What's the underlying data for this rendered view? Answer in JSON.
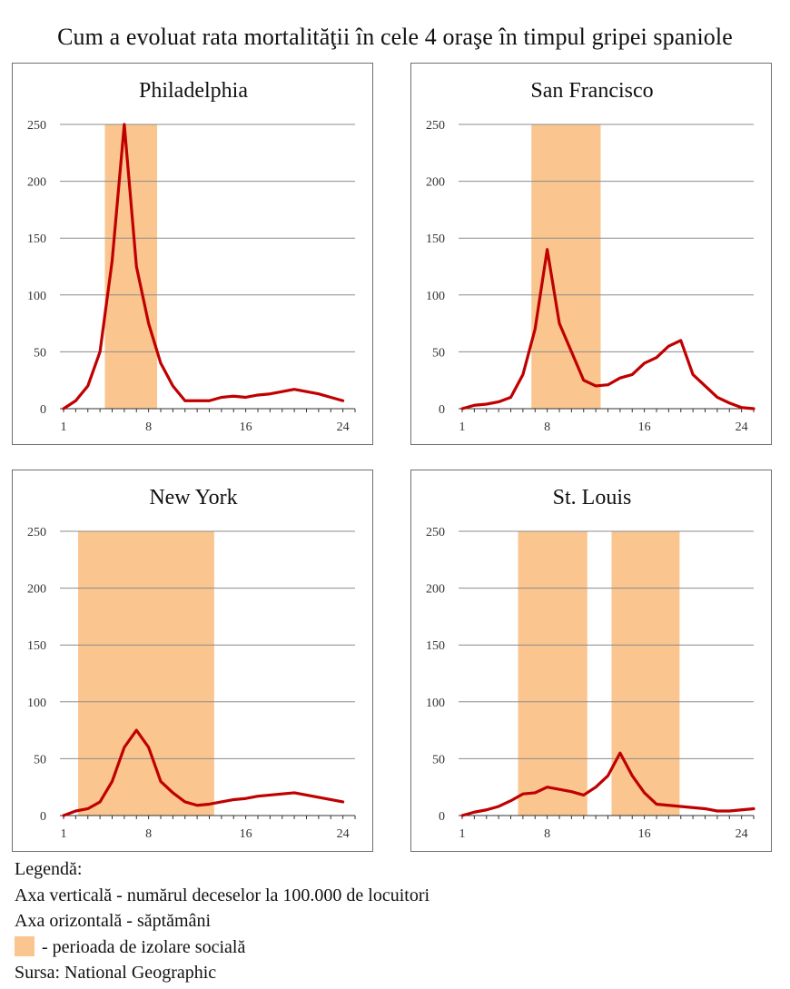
{
  "chart_data": {
    "title": "Cum a evoluat rata mortalităţii în cele 4 oraşe în timpul gripei spaniole",
    "y_ticks": [
      "250",
      "200",
      "150",
      "100",
      "50",
      "0"
    ],
    "x_ticks": [
      "1",
      "8",
      "16",
      "24"
    ],
    "ylim": [
      0,
      250
    ],
    "xlim": [
      1,
      25
    ],
    "line_color": "#c00000",
    "shade_color": "#fac58e",
    "charts": [
      {
        "type": "line",
        "title": "Philadelphia",
        "isolation_periods": [
          [
            4.4,
            8.7
          ]
        ],
        "x": [
          1,
          2,
          3,
          4,
          5,
          6,
          7,
          8,
          9,
          10,
          11,
          12,
          13,
          14,
          15,
          16,
          17,
          18,
          19,
          20,
          21,
          22,
          23,
          24
        ],
        "values": [
          0,
          7,
          20,
          50,
          130,
          250,
          125,
          75,
          40,
          20,
          7,
          7,
          7,
          10,
          11,
          10,
          12,
          13,
          15,
          17,
          15,
          13,
          10,
          7
        ]
      },
      {
        "type": "line",
        "title": "San Francisco",
        "isolation_periods": [
          [
            6.7,
            12.4
          ]
        ],
        "x": [
          1,
          2,
          3,
          4,
          5,
          6,
          7,
          8,
          9,
          10,
          11,
          12,
          13,
          14,
          15,
          16,
          17,
          18,
          19,
          20,
          21,
          22,
          23,
          24,
          25
        ],
        "values": [
          0,
          3,
          4,
          6,
          10,
          30,
          70,
          140,
          75,
          50,
          25,
          20,
          21,
          27,
          30,
          40,
          45,
          55,
          60,
          30,
          20,
          10,
          5,
          1,
          0
        ]
      },
      {
        "type": "line",
        "title": "New York",
        "isolation_periods": [
          [
            2.2,
            13.4
          ]
        ],
        "x": [
          1,
          2,
          3,
          4,
          5,
          6,
          7,
          8,
          9,
          10,
          11,
          12,
          13,
          14,
          15,
          16,
          17,
          18,
          19,
          20,
          21,
          22,
          23,
          24
        ],
        "values": [
          0,
          4,
          6,
          12,
          30,
          60,
          75,
          60,
          30,
          20,
          12,
          9,
          10,
          12,
          14,
          15,
          17,
          18,
          19,
          20,
          18,
          16,
          14,
          12
        ]
      },
      {
        "type": "line",
        "title": "St. Louis",
        "isolation_periods": [
          [
            5.6,
            11.3
          ],
          [
            13.3,
            18.9
          ]
        ],
        "x": [
          1,
          2,
          3,
          4,
          5,
          6,
          7,
          8,
          9,
          10,
          11,
          12,
          13,
          14,
          15,
          16,
          17,
          18,
          19,
          20,
          21,
          22,
          23,
          24,
          25
        ],
        "values": [
          0,
          3,
          5,
          8,
          13,
          19,
          20,
          25,
          23,
          21,
          18,
          25,
          35,
          55,
          35,
          20,
          10,
          9,
          8,
          7,
          6,
          4,
          4,
          5,
          6
        ]
      }
    ]
  },
  "legend": {
    "heading": "Legendă:",
    "vertical": "Axa verticală - numărul deceselor la 100.000 de locuitori",
    "horizontal": "Axa orizontală - săptămâni",
    "isolation": "- perioada de izolare socială",
    "source": "Sursa: National Geographic"
  }
}
